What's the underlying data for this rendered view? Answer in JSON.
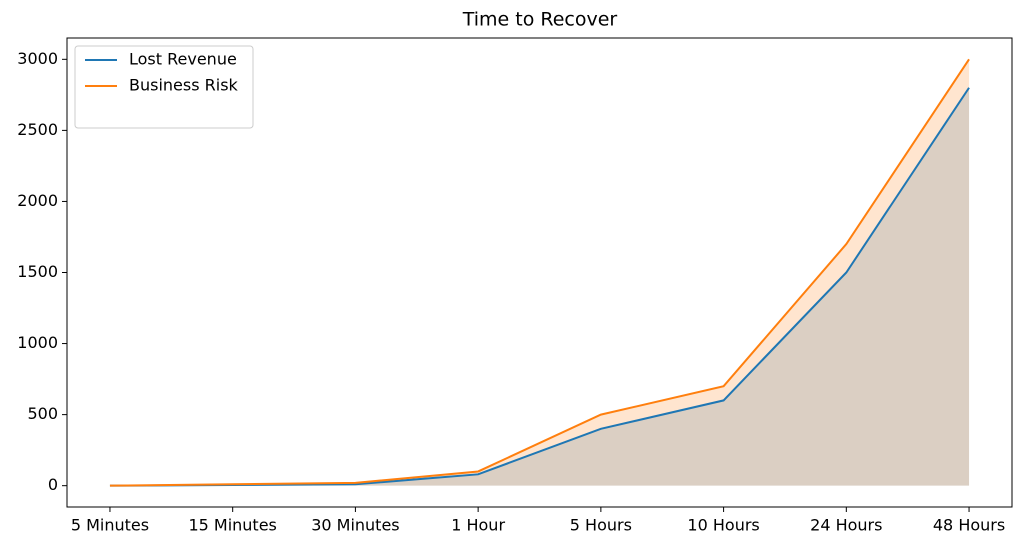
{
  "chart_data": {
    "type": "line",
    "title": "Time to Recover",
    "categories": [
      "5 Minutes",
      "15 Minutes",
      "30 Minutes",
      "1 Hour",
      "5 Hours",
      "10 Hours",
      "24 Hours",
      "48 Hours"
    ],
    "series": [
      {
        "name": "Lost Revenue",
        "color": "#1f77b4",
        "values": [
          0,
          5,
          10,
          80,
          400,
          600,
          1500,
          2800
        ]
      },
      {
        "name": "Business Risk",
        "color": "#ff7f0e",
        "values": [
          0,
          10,
          20,
          100,
          500,
          700,
          1700,
          3000
        ]
      }
    ],
    "fill": true,
    "ylim": [
      -150,
      3150
    ],
    "yticks": [
      0,
      500,
      1000,
      1500,
      2000,
      2500,
      3000
    ],
    "legend": "upper left"
  }
}
